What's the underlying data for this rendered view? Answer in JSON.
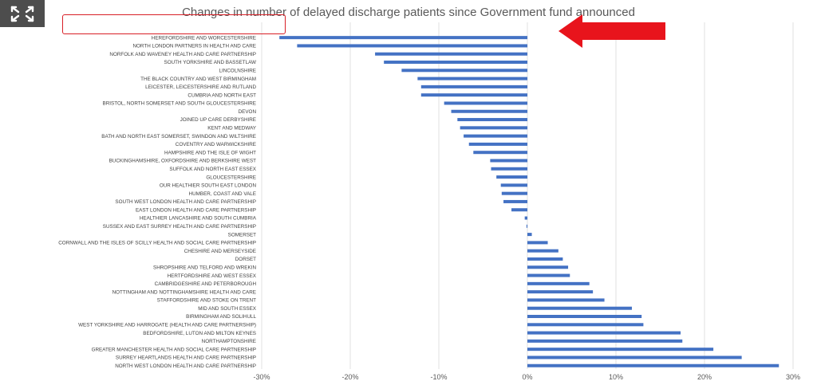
{
  "ui": {
    "expand_icon": "expand-arrows-icon",
    "arrow_color": "#e8141c",
    "bar_color": "#4472c4"
  },
  "chart_data": {
    "type": "bar",
    "orientation": "horizontal",
    "title": "Changes in number of delayed discharge patients since Government fund announced",
    "xlabel": "",
    "ylabel": "",
    "xlim": [
      -30,
      30
    ],
    "x_ticks": [
      "-30%",
      "-20%",
      "-10%",
      "0%",
      "10%",
      "20%",
      "30%"
    ],
    "grid": true,
    "categories": [
      "HEREFORDSHIRE AND WORCESTERSHIRE",
      "NORTH LONDON PARTNERS IN HEALTH AND CARE",
      "NORFOLK AND WAVENEY HEALTH AND CARE PARTNERSHIP",
      "SOUTH YORKSHIRE AND BASSETLAW",
      "LINCOLNSHIRE",
      "THE BLACK COUNTRY AND WEST BIRMINGHAM",
      "LEICESTER, LEICESTERSHIRE AND RUTLAND",
      "CUMBRIA AND NORTH EAST",
      "BRISTOL, NORTH SOMERSET AND SOUTH GLOUCESTERSHIRE",
      "DEVON",
      "JOINED UP CARE DERBYSHIRE",
      "KENT AND MEDWAY",
      "BATH AND NORTH EAST SOMERSET, SWINDON AND WILTSHIRE",
      "COVENTRY AND WARWICKSHIRE",
      "HAMPSHIRE AND THE ISLE OF WIGHT",
      "BUCKINGHAMSHIRE, OXFORDSHIRE AND BERKSHIRE WEST",
      "SUFFOLK AND NORTH EAST ESSEX",
      "GLOUCESTERSHIRE",
      "OUR HEALTHIER SOUTH EAST LONDON",
      "HUMBER, COAST AND VALE",
      "SOUTH WEST LONDON HEALTH AND CARE PARTNERSHIP",
      "EAST LONDON HEALTH AND CARE PARTNERSHIP",
      "HEALTHIER LANCASHIRE AND SOUTH CUMBRIA",
      "SUSSEX AND EAST SURREY HEALTH AND CARE PARTNERSHIP",
      "SOMERSET",
      "CORNWALL AND THE ISLES OF SCILLY HEALTH AND SOCIAL CARE PARTNERSHIP",
      "CHESHIRE AND MERSEYSIDE",
      "DORSET",
      "SHROPSHIRE AND TELFORD AND WREKIN",
      "HERTFORDSHIRE AND WEST ESSEX",
      "CAMBRIDGESHIRE AND PETERBOROUGH",
      "NOTTINGHAM AND NOTTINGHAMSHIRE HEALTH AND CARE",
      "STAFFORDSHIRE AND STOKE ON TRENT",
      "MID AND SOUTH ESSEX",
      "BIRMINGHAM AND SOLIHULL",
      "WEST YORKSHIRE AND HARROGATE (HEALTH AND CARE PARTNERSHIP)",
      "BEDFORDSHIRE, LUTON AND MILTON KEYNES",
      "NORTHAMPTONSHIRE",
      "GREATER MANCHESTER HEALTH AND SOCIAL CARE PARTNERSHIP",
      "SURREY HEARTLANDS HEALTH AND CARE PARTNERSHIP",
      "NORTH WEST LONDON HEALTH AND CARE PARTNERSHIP"
    ],
    "values": [
      -28.0,
      -26.0,
      -17.2,
      -16.2,
      -14.2,
      -12.4,
      -12.0,
      -12.0,
      -9.4,
      -8.6,
      -7.9,
      -7.6,
      -7.2,
      -6.6,
      -6.1,
      -4.2,
      -4.1,
      -3.5,
      -3.0,
      -2.9,
      -2.7,
      -1.8,
      -0.3,
      -0.1,
      0.5,
      2.3,
      3.5,
      4.0,
      4.6,
      4.8,
      7.0,
      7.4,
      8.7,
      11.8,
      12.9,
      13.1,
      17.3,
      17.5,
      21.0,
      24.2,
      28.4
    ]
  }
}
